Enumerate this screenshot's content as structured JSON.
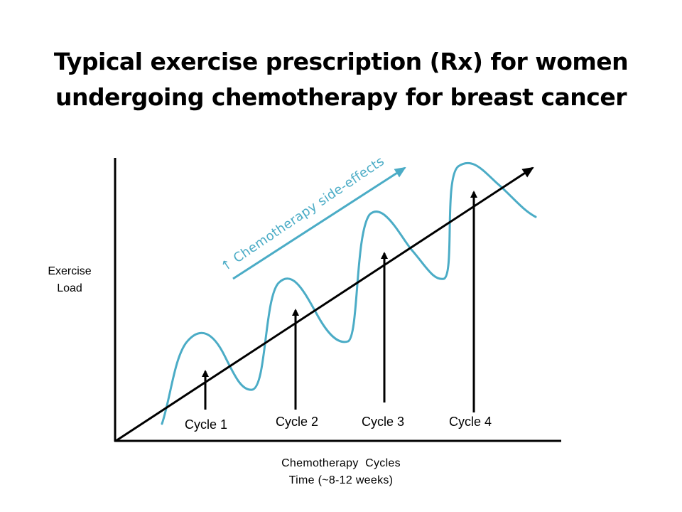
{
  "title": {
    "line1": "Typical exercise prescription (Rx) for women",
    "line2": "undergoing chemotherapy for breast cancer"
  },
  "y_axis": {
    "line1": "Exercise",
    "line2": "Load"
  },
  "x_axis": {
    "line1": "Chemotherapy  Cycles",
    "line2": "Time (~8-12 weeks)"
  },
  "side_effects_label": "↑ Chemotherapy side-effects",
  "cycles": [
    {
      "label": "Cycle 1"
    },
    {
      "label": "Cycle 2"
    },
    {
      "label": "Cycle 3"
    },
    {
      "label": "Cycle 4"
    }
  ],
  "colors": {
    "accent": "#4bacc6",
    "axis": "#000000",
    "text": "#000000"
  }
}
